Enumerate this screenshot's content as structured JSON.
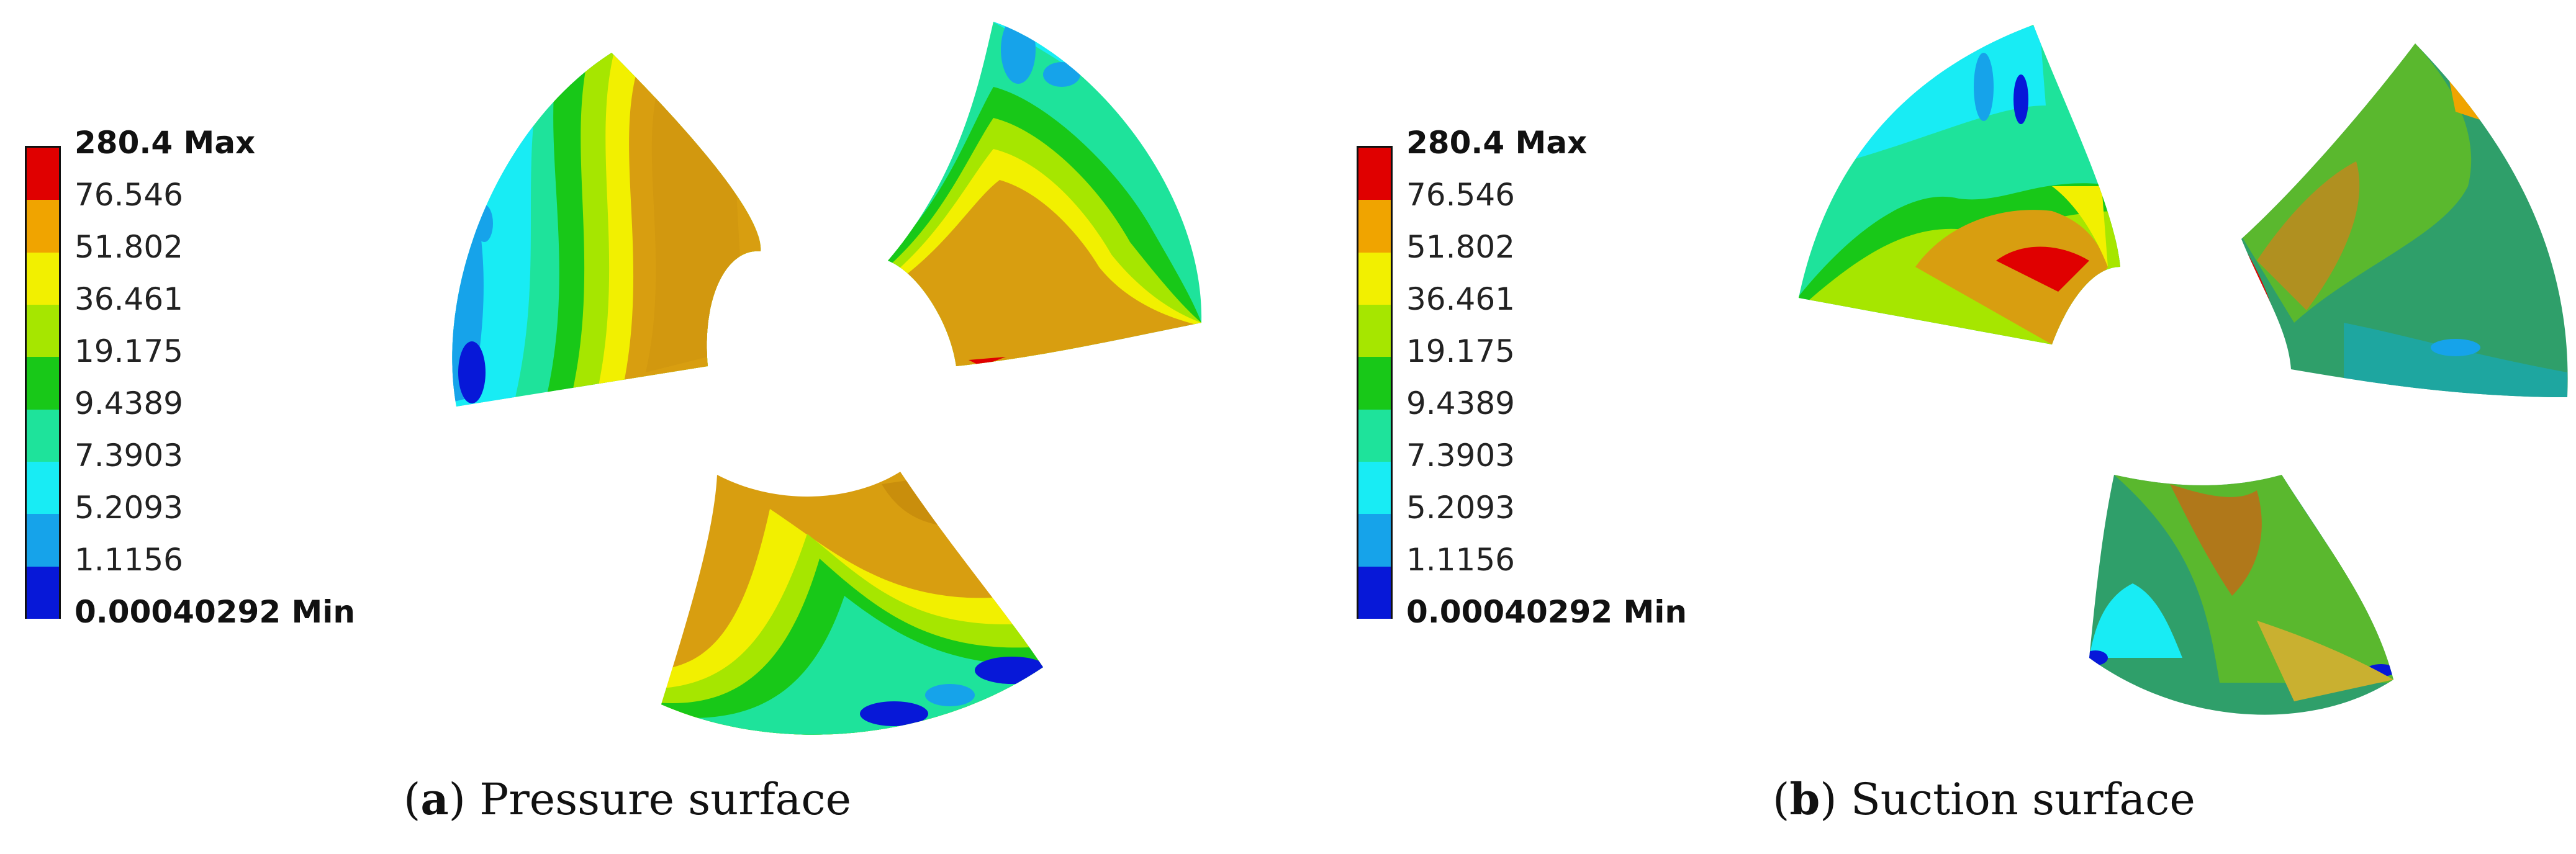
{
  "panels": [
    {
      "letter": "a",
      "caption": "Pressure surface",
      "legend": [
        "280.4 Max",
        "76.546",
        "51.802",
        "36.461",
        "19.175",
        "9.4389",
        "7.3903",
        "5.2093",
        "1.1156",
        "0.00040292 Min"
      ]
    },
    {
      "letter": "b",
      "caption": "Suction surface",
      "legend": [
        "280.4 Max",
        "76.546",
        "51.802",
        "36.461",
        "19.175",
        "9.4389",
        "7.3903",
        "5.2093",
        "1.1156",
        "0.00040292 Min"
      ]
    }
  ],
  "colors": {
    "scale": [
      "#e00000",
      "#f0a400",
      "#f2f000",
      "#a6e600",
      "#18c818",
      "#1ee39b",
      "#18ecf4",
      "#16a3ea",
      "#0718d8"
    ],
    "caption_text": "#111111",
    "background": "#ffffff"
  }
}
